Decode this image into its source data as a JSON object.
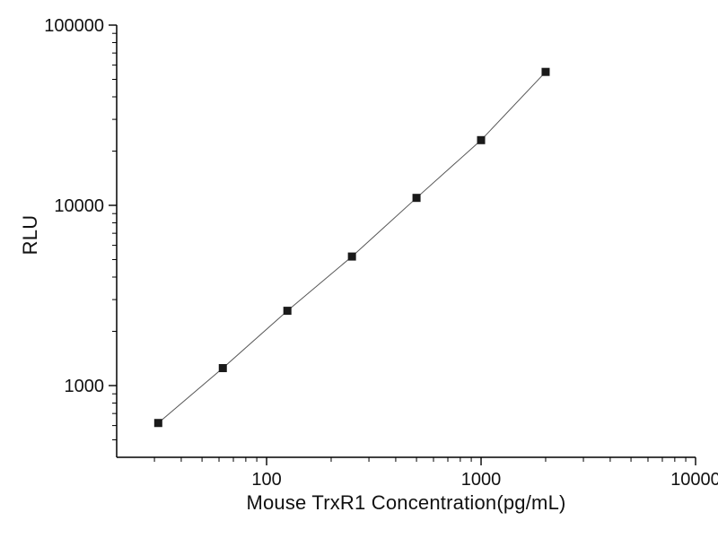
{
  "chart_data": {
    "type": "scatter",
    "title": "",
    "xlabel": "Mouse TrxR1 Concentration(pg/mL)",
    "ylabel": "RLU",
    "xscale": "log",
    "yscale": "log",
    "xlim": [
      20,
      10000
    ],
    "ylim": [
      400,
      100000
    ],
    "x_ticks": [
      100,
      1000,
      10000
    ],
    "x_tick_labels": [
      "100",
      "1000",
      "10000"
    ],
    "y_ticks": [
      1000,
      10000,
      100000
    ],
    "y_tick_labels": [
      "1000",
      "10000",
      "100000"
    ],
    "x": [
      31.25,
      62.5,
      125,
      250,
      500,
      1000,
      2000
    ],
    "y": [
      620,
      1250,
      2600,
      5200,
      11000,
      23000,
      55000
    ],
    "marker": "filled-square",
    "marker_color": "#1a1a1a",
    "line_color": "#555555",
    "axis_color": "#000000",
    "background": "#ffffff",
    "grid": "off",
    "legend": "none"
  }
}
